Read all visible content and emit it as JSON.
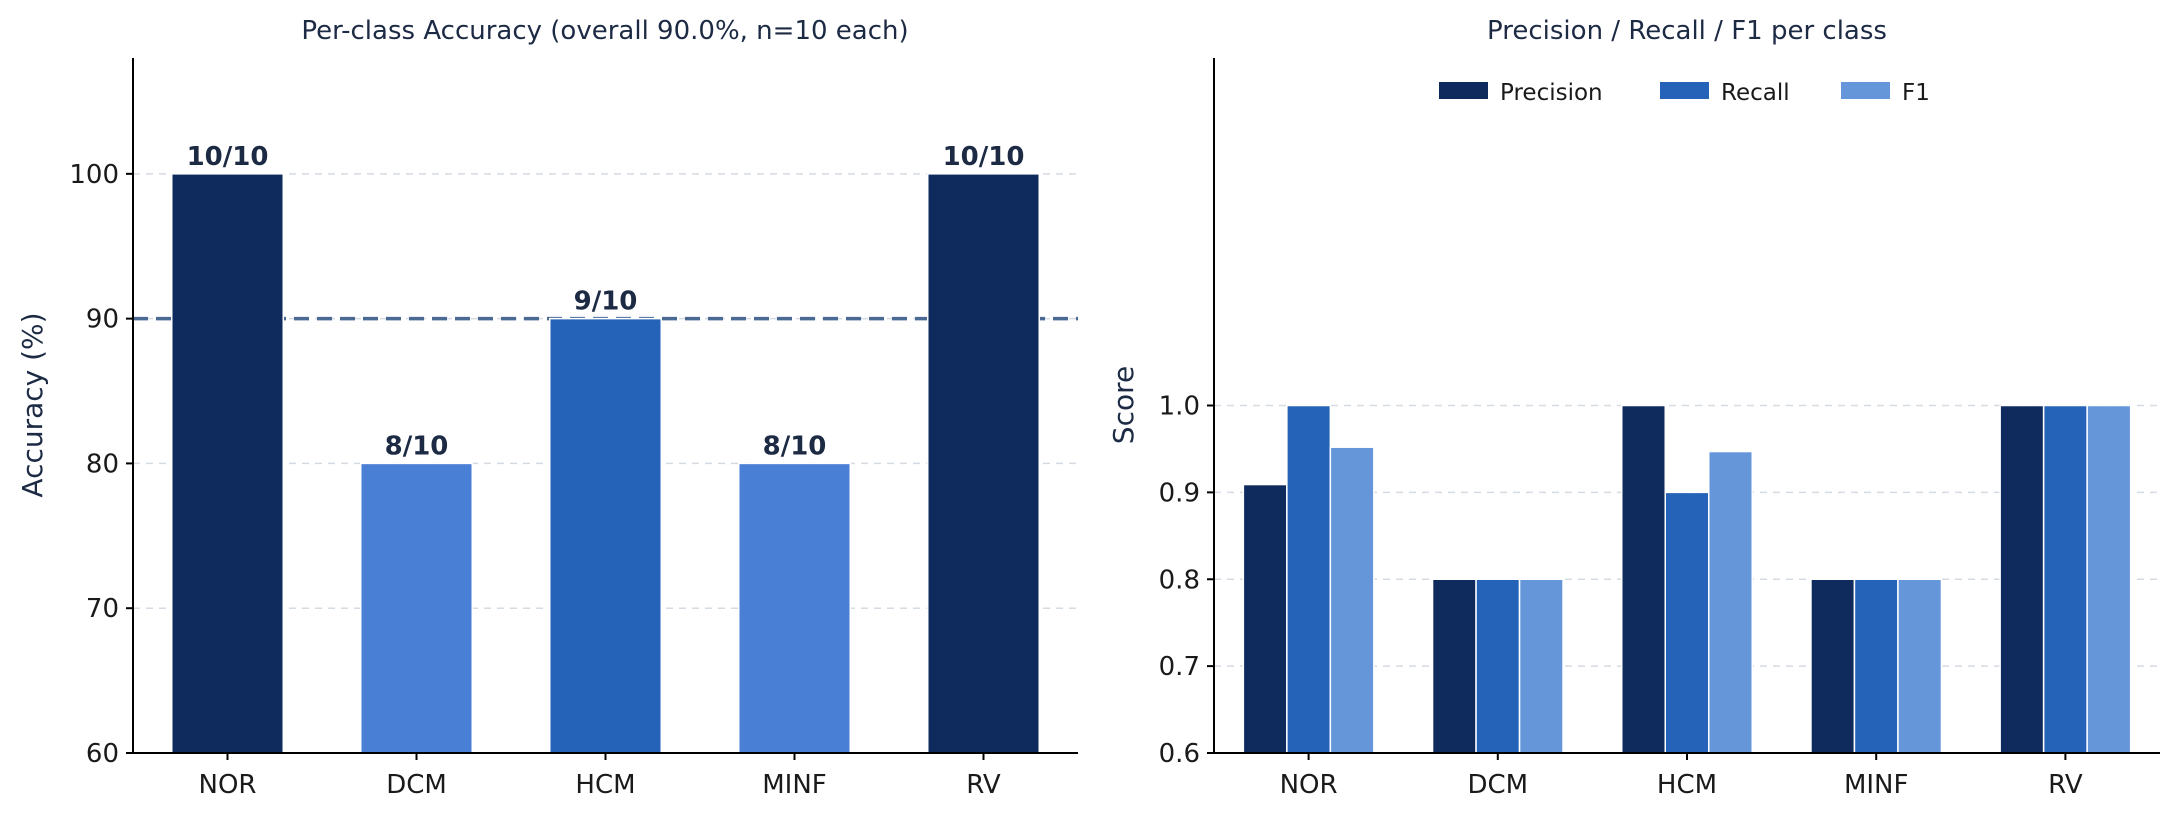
{
  "chart_data": [
    {
      "type": "bar",
      "title": "Per-class Accuracy (overall 90.0%, n=10 each)",
      "xlabel": "",
      "ylabel": "Accuracy (%)",
      "categories": [
        "NOR",
        "DCM",
        "HCM",
        "MINF",
        "RV"
      ],
      "values": [
        100,
        80,
        90,
        80,
        100
      ],
      "bar_labels": [
        "10/10",
        "8/10",
        "9/10",
        "8/10",
        "10/10"
      ],
      "bar_colors": [
        "#0f2a5c",
        "#4a7fd6",
        "#2563b8",
        "#4a7fd6",
        "#0f2a5c"
      ],
      "ylim": [
        60,
        108
      ],
      "yticks": [
        60,
        70,
        80,
        90,
        100
      ],
      "reference_line": {
        "value": 90,
        "style": "dashed",
        "color": "#4a6a93"
      },
      "grid": true
    },
    {
      "type": "bar",
      "title": "Precision / Recall / F1 per class",
      "xlabel": "",
      "ylabel": "Score",
      "categories": [
        "NOR",
        "DCM",
        "HCM",
        "MINF",
        "RV"
      ],
      "series": [
        {
          "name": "Precision",
          "color": "#0f2a5c",
          "values": [
            0.909,
            0.8,
            1.0,
            0.8,
            1.0
          ]
        },
        {
          "name": "Recall",
          "color": "#2563b8",
          "values": [
            1.0,
            0.8,
            0.9,
            0.8,
            1.0
          ]
        },
        {
          "name": "F1",
          "color": "#6596da",
          "values": [
            0.952,
            0.8,
            0.947,
            0.8,
            1.0
          ]
        }
      ],
      "ylim": [
        0.6,
        1.4
      ],
      "yticks": [
        "0.6",
        "0.7",
        "0.8",
        "0.9",
        "1.0"
      ],
      "legend_position": "top-center",
      "grid": true
    }
  ]
}
